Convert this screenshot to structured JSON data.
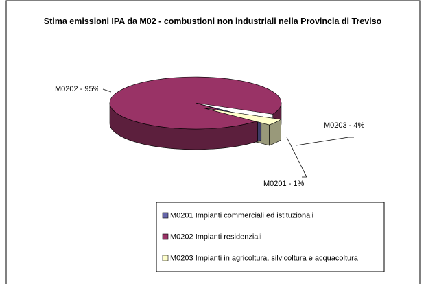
{
  "chart_data": {
    "type": "pie3d",
    "title": "Stima emissioni IPA da M02 - combustioni non industriali nella Provincia di Treviso",
    "categories": [
      "M0201 Impianti commerciali ed istituzionali",
      "M0202 Impianti residenziali",
      "M0203 Impianti in agricoltura, silvicoltura e acquacoltura"
    ],
    "values": [
      1,
      95,
      4
    ],
    "value_labels": [
      "M0201 - 1%",
      "M0202 - 95%",
      "M0203 - 4%"
    ],
    "colors": [
      "#6666aa",
      "#993366",
      "#ffffcc"
    ],
    "legend": "bottom"
  }
}
